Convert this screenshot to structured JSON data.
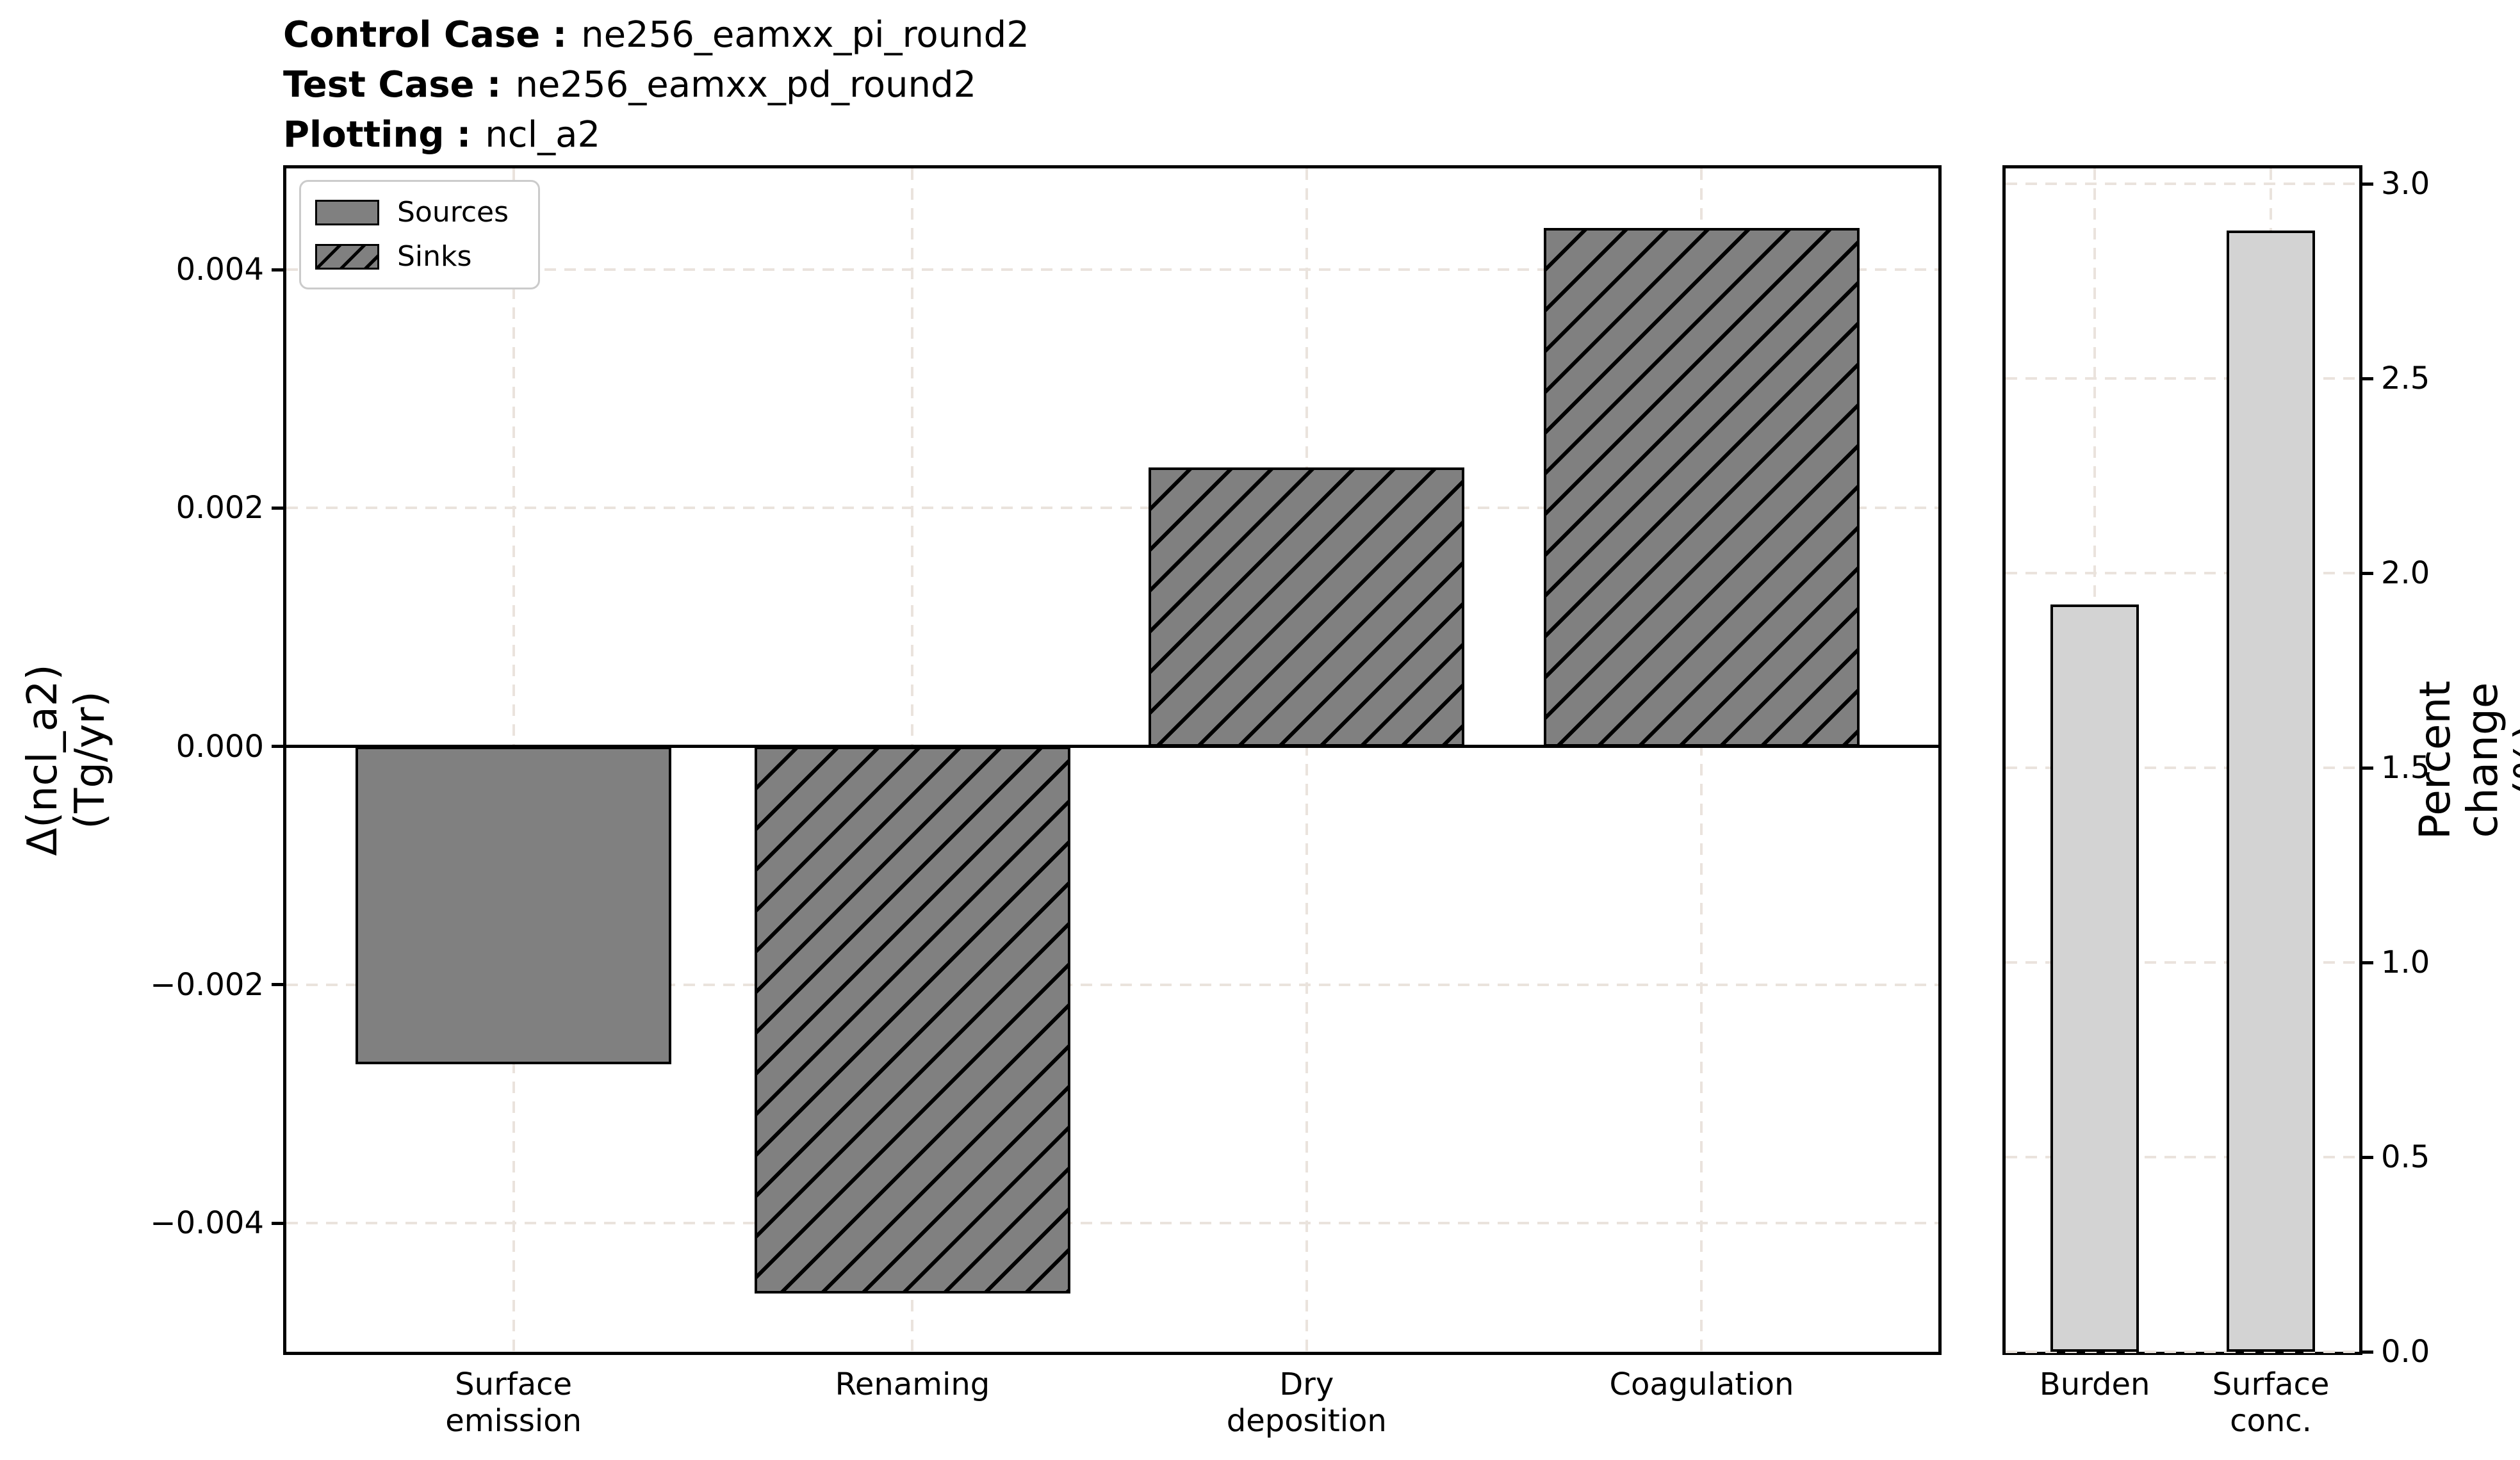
{
  "header": {
    "lines": [
      {
        "label": "Control Case :",
        "value": "ne256_eamxx_pi_round2"
      },
      {
        "label": "Test Case :",
        "value": "ne256_eamxx_pd_round2"
      },
      {
        "label": "Plotting :",
        "value": "ncl_a2"
      }
    ]
  },
  "legend": {
    "items": [
      {
        "name": "Sources",
        "style": "solid"
      },
      {
        "name": "Sinks",
        "style": "hatch"
      }
    ]
  },
  "colors": {
    "bar_gray": "#808080",
    "bar_lightgray": "#d3d3d3",
    "bar_edge": "#000000",
    "grid": "#eae3dd",
    "zero_line": "#000000",
    "legend_border": "#cbcbcb"
  },
  "chart_data": [
    {
      "type": "bar",
      "panel": "budget-fluxes",
      "title": "",
      "categories": [
        "Surface\nemission",
        "Renaming",
        "Dry\ndeposition",
        "Coagulation"
      ],
      "series": [
        {
          "name": "Sources",
          "hatch": false,
          "values": [
            -0.00267,
            null,
            null,
            null
          ]
        },
        {
          "name": "Sinks",
          "hatch": true,
          "values": [
            null,
            -0.00459,
            0.00234,
            0.00435
          ]
        }
      ],
      "ylabel": "Δ(ncl_a2)\n(Tg/yr)",
      "yticks": [
        {
          "value": 0.004,
          "label": "0.004"
        },
        {
          "value": 0.002,
          "label": "0.002"
        },
        {
          "value": 0.0,
          "label": "0.000"
        },
        {
          "value": -0.002,
          "label": "−0.002"
        },
        {
          "value": -0.004,
          "label": "−0.004"
        }
      ],
      "ylim": [
        -0.00508,
        0.00485
      ],
      "grid": true,
      "zero_line": true,
      "legend_position": "upper left"
    },
    {
      "type": "bar",
      "panel": "percent-change",
      "title": "",
      "categories": [
        "Burden",
        "Surface\nconc."
      ],
      "values": [
        1.92,
        2.88
      ],
      "ylabel": "Percent change (%)",
      "yticks": [
        {
          "value": 0.0,
          "label": "0.0"
        },
        {
          "value": 0.5,
          "label": "0.5"
        },
        {
          "value": 1.0,
          "label": "1.0"
        },
        {
          "value": 1.5,
          "label": "1.5"
        },
        {
          "value": 2.0,
          "label": "2.0"
        },
        {
          "value": 2.5,
          "label": "2.5"
        },
        {
          "value": 3.0,
          "label": "3.0"
        }
      ],
      "ylim": [
        0,
        3.04
      ],
      "grid": true,
      "ticks_side": "right"
    }
  ]
}
